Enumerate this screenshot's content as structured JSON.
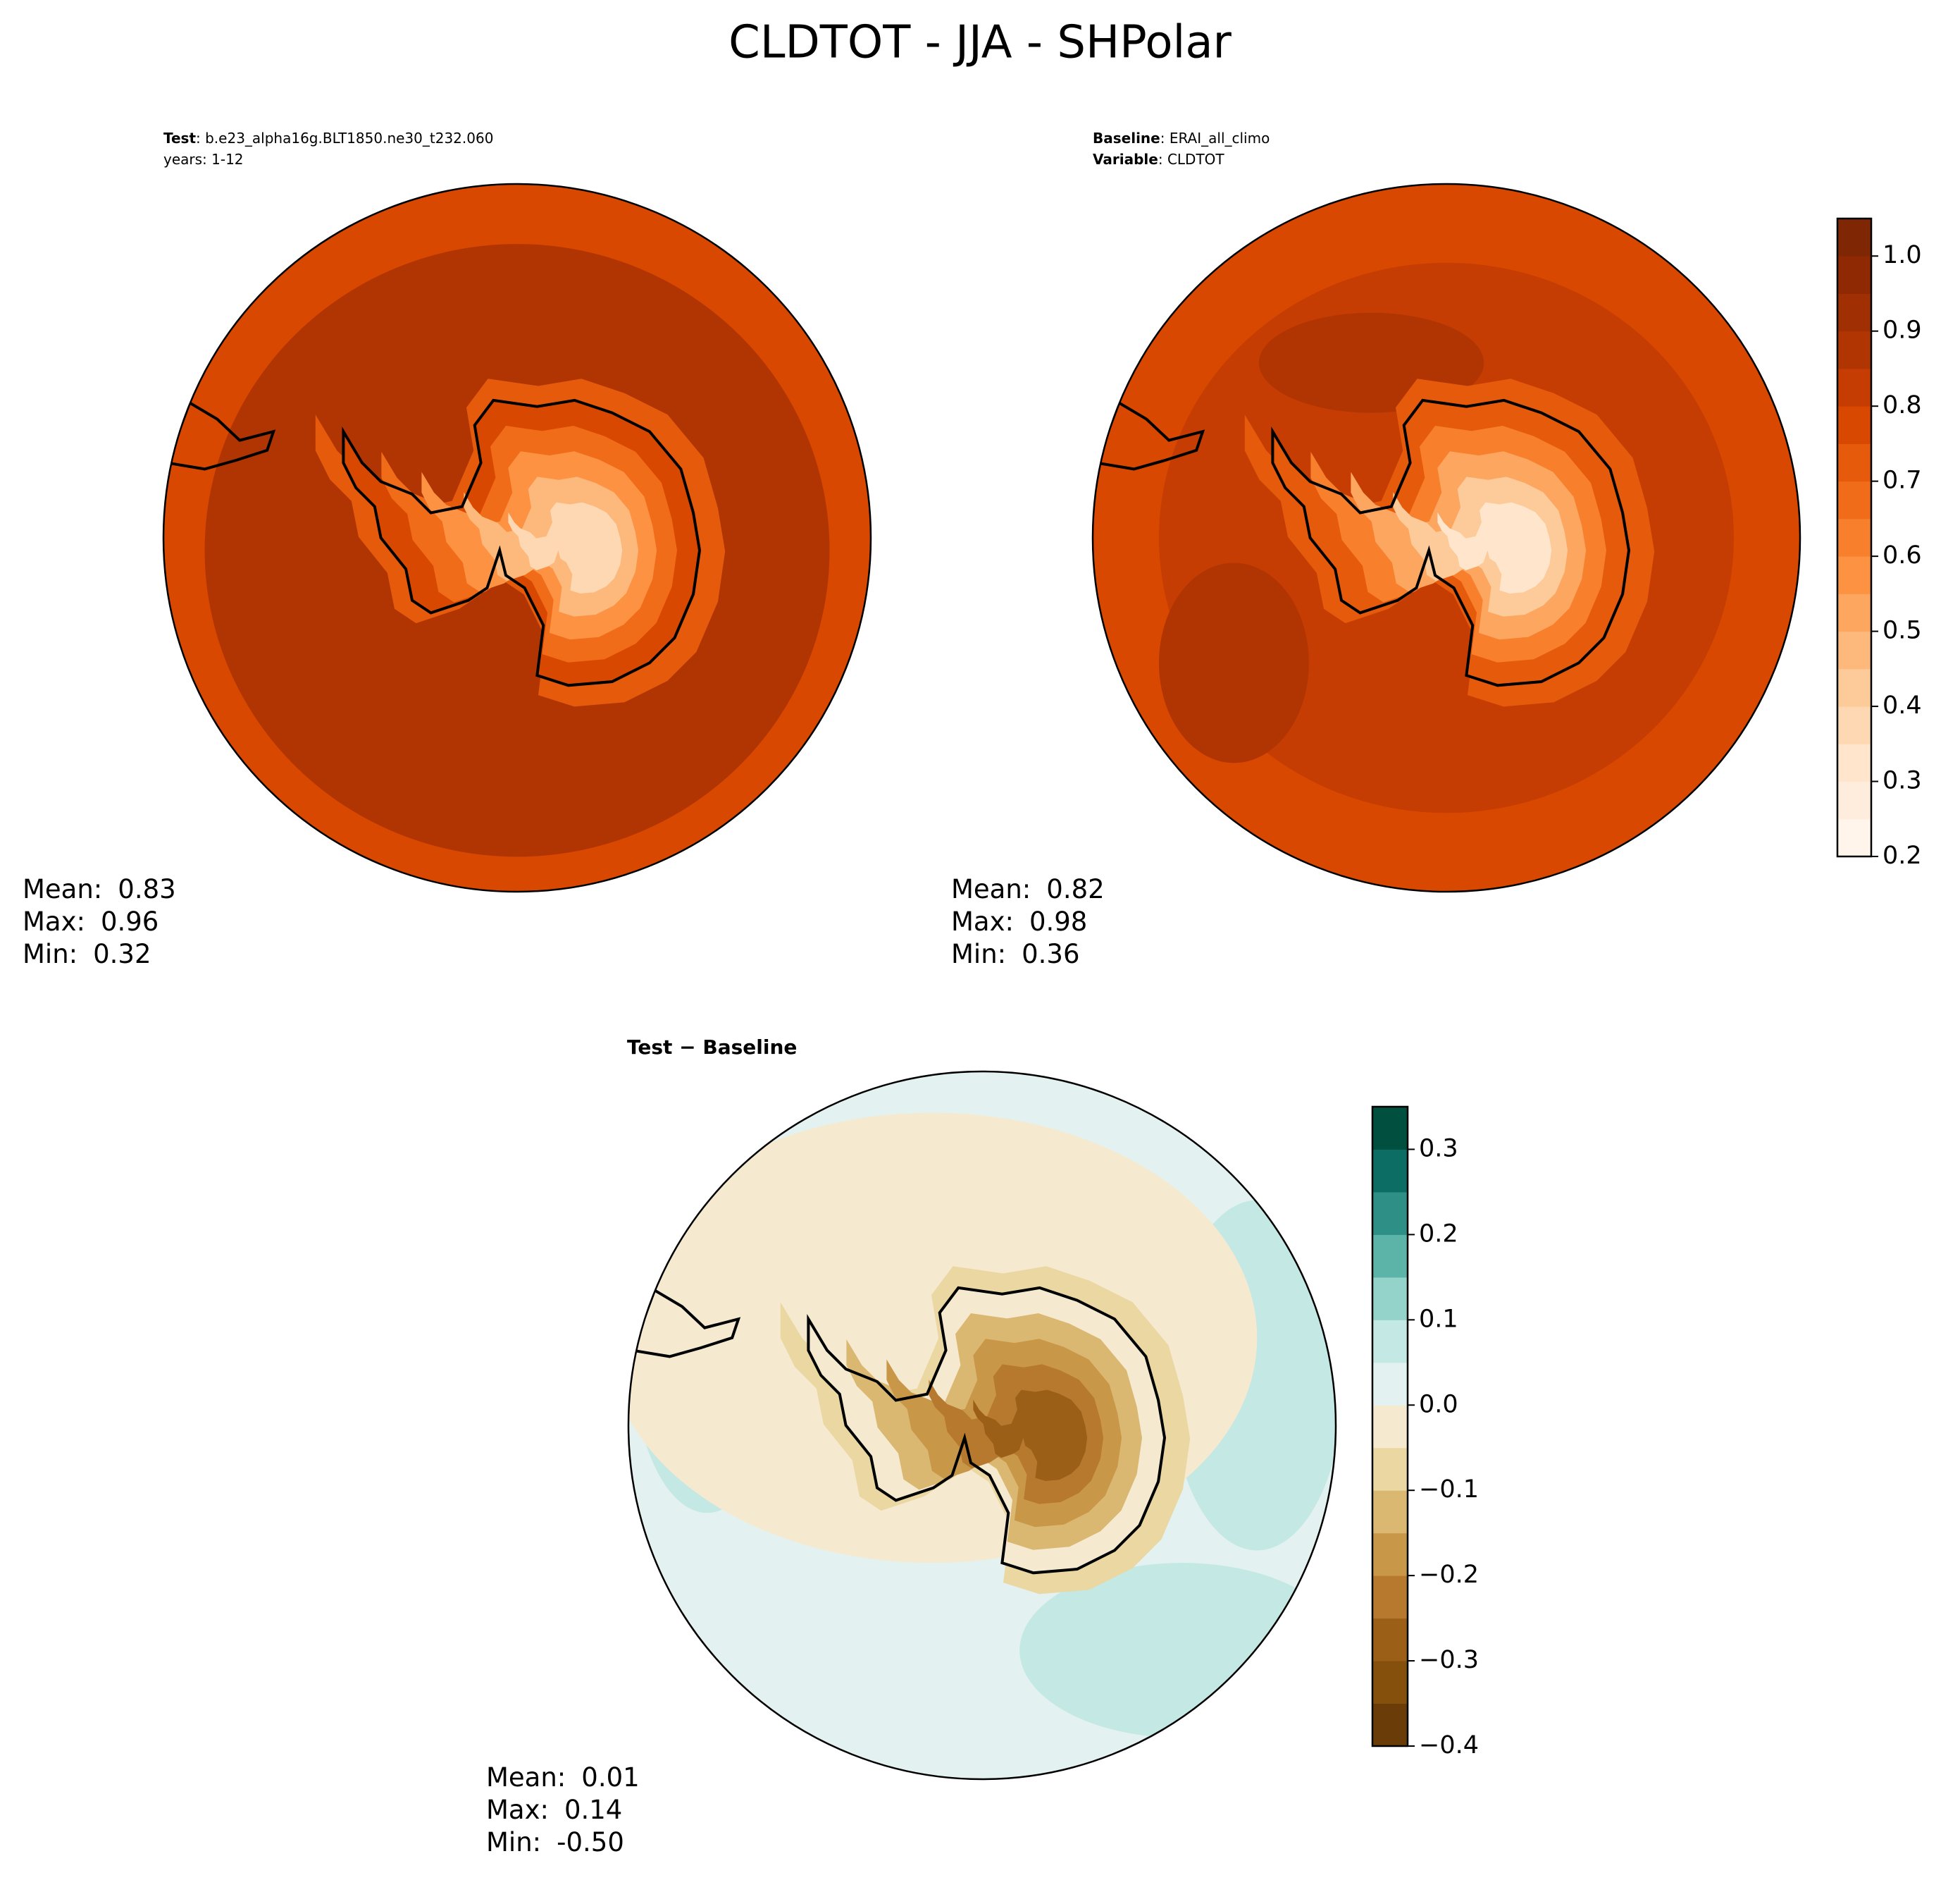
{
  "title": "CLDTOT - JJA - SHPolar",
  "chart_data": [
    {
      "type": "polar-map",
      "header": [
        {
          "label": "Test",
          "text": ": b.e23_alpha16g.BLT1850.ne30_t232.060"
        },
        {
          "text": "years: 1-12"
        }
      ],
      "stats": {
        "labels": [
          "Mean:",
          "Max:",
          "Min:"
        ],
        "values": [
          0.83,
          0.96,
          0.32
        ]
      }
    },
    {
      "type": "polar-map",
      "header": [
        {
          "label": "Baseline",
          "text": ": ERAI_all_climo"
        },
        {
          "label": "Variable",
          "text": ": CLDTOT"
        }
      ],
      "stats": {
        "labels": [
          "Mean:",
          "Max:",
          "Min:"
        ],
        "values": [
          0.82,
          0.98,
          0.36
        ]
      },
      "colorbar": {
        "ylim": [
          0.2,
          1.05
        ],
        "yticks": [
          0.2,
          0.3,
          0.4,
          0.5,
          0.6,
          0.7,
          0.8,
          0.9,
          {
            "value": 1,
            "label": "1.0"
          }
        ],
        "levels": [
          0.2,
          0.25,
          0.3,
          0.35,
          0.4,
          0.45,
          0.5,
          0.55,
          0.6,
          0.65,
          0.7,
          0.75,
          0.8,
          0.85,
          0.9,
          0.95,
          1,
          1.05
        ],
        "colors": [
          "#fff5eb",
          "#feeddc",
          "#fee5cb",
          "#fdd8b2",
          "#fdca99",
          "#fdb87c",
          "#fda660",
          "#fd9243",
          "#f87f2c",
          "#f16c19",
          "#e65a0b",
          "#d94801",
          "#c53d02",
          "#b13502",
          "#a02f03",
          "#8f2904",
          "#7f2704"
        ]
      }
    },
    {
      "type": "polar-map",
      "title": "Test − Baseline",
      "stats": {
        "labels": [
          "Mean:",
          "Max:",
          "Min:"
        ],
        "values": [
          0.01,
          0.14,
          -0.5
        ],
        "value_labels": [
          "0.01",
          "0.14",
          "-0.50"
        ]
      },
      "colorbar": {
        "ylim": [
          -0.4,
          0.35
        ],
        "yticks": [
          {
            "value": -0.4,
            "label": "−0.4"
          },
          {
            "value": -0.3,
            "label": "−0.3"
          },
          {
            "value": -0.2,
            "label": "−0.2"
          },
          {
            "value": -0.1,
            "label": "−0.1"
          },
          {
            "value": 0,
            "label": "0.0"
          },
          0.1,
          0.2,
          0.3
        ],
        "levels": [
          -0.4,
          -0.35,
          -0.3,
          -0.25,
          -0.2,
          -0.15,
          -0.1,
          -0.05,
          0,
          0.05,
          0.1,
          0.15,
          0.2,
          0.25,
          0.3,
          0.35
        ],
        "colors": [
          "#6a3d08",
          "#84500b",
          "#9c5f17",
          "#b7792e",
          "#c99748",
          "#dbb872",
          "#ebd7a1",
          "#f5ead0",
          "#e3f2f0",
          "#c4e8e3",
          "#93d3c9",
          "#5cb3a8",
          "#2d8f86",
          "#0b6d64",
          "#01503f"
        ]
      }
    }
  ]
}
